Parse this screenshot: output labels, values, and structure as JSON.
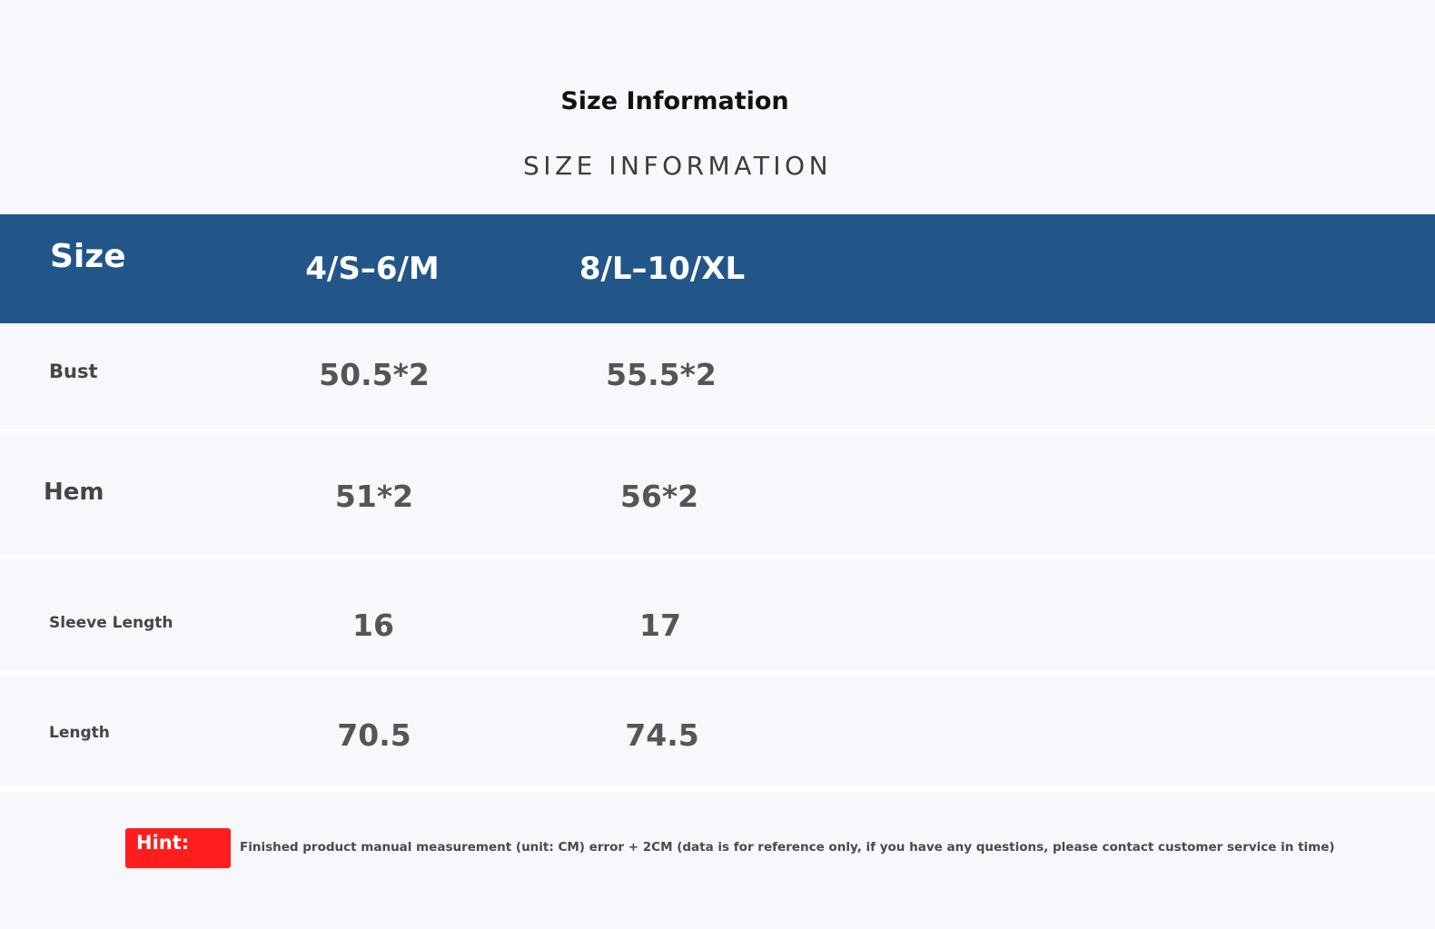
{
  "title": "Size Information",
  "subtitle": "SIZE INFORMATION",
  "header": {
    "size_label": "Size",
    "columns": [
      "4/S–6/M",
      "8/L–10/XL"
    ]
  },
  "rows": [
    {
      "label": "Bust",
      "values": [
        "50.5*2",
        "55.5*2"
      ]
    },
    {
      "label": "Hem",
      "values": [
        "51*2",
        "56*2"
      ]
    },
    {
      "label": "Sleeve Length",
      "values": [
        "16",
        "17"
      ]
    },
    {
      "label": "Length",
      "values": [
        "70.5",
        "74.5"
      ]
    }
  ],
  "hint": {
    "label": "Hint:",
    "text": "Finished product manual measurement (unit: CM) error + 2CM (data is for reference only, if you have any questions, please contact customer service in time)"
  },
  "colors": {
    "header_band": "#225689",
    "hint_badge": "#ff1d1d",
    "background": "#f7f7fc"
  }
}
